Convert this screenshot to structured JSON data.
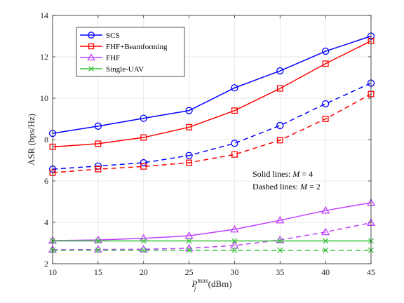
{
  "chart_data": {
    "type": "line",
    "x": [
      10,
      15,
      20,
      25,
      30,
      35,
      40,
      45
    ],
    "xlim": [
      10,
      45
    ],
    "ylim": [
      2,
      14
    ],
    "xticks": [
      "10",
      "15",
      "20",
      "25",
      "30",
      "35",
      "40",
      "45"
    ],
    "yticks": [
      "2",
      "4",
      "6",
      "8",
      "10",
      "12",
      "14"
    ],
    "xlabel": "P_j^max (dBm)",
    "xlabel_parts": {
      "base": "P",
      "sub": "j",
      "sup": "max",
      "unit": " (dBm)"
    },
    "ylabel": "ASR (bps/Hz)",
    "grid": true,
    "legend_position": "top-left",
    "legend": [
      {
        "name": "SCS",
        "color": "#0000ff",
        "marker": "circle"
      },
      {
        "name": "FHF+Beamforming",
        "color": "#ff0000",
        "marker": "square"
      },
      {
        "name": "FHF",
        "color": "#bf40ff",
        "marker": "triangle"
      },
      {
        "name": "Single-UAV",
        "color": "#3cc13c",
        "marker": "x"
      }
    ],
    "series": [
      {
        "legend_index": 0,
        "M": 4,
        "dash": "solid",
        "color": "#0000ff",
        "marker": "circle",
        "values": [
          8.3,
          8.65,
          9.03,
          9.4,
          10.5,
          11.32,
          12.27,
          13.0
        ]
      },
      {
        "legend_index": 0,
        "M": 2,
        "dash": "dashed",
        "color": "#0000ff",
        "marker": "circle",
        "values": [
          6.57,
          6.72,
          6.88,
          7.23,
          7.82,
          8.68,
          9.73,
          10.73
        ]
      },
      {
        "legend_index": 1,
        "M": 4,
        "dash": "solid",
        "color": "#ff0000",
        "marker": "square",
        "values": [
          7.65,
          7.8,
          8.1,
          8.6,
          9.4,
          10.47,
          11.67,
          12.77
        ]
      },
      {
        "legend_index": 1,
        "M": 2,
        "dash": "dashed",
        "color": "#ff0000",
        "marker": "square",
        "values": [
          6.4,
          6.57,
          6.7,
          6.88,
          7.28,
          7.97,
          9.0,
          10.2
        ]
      },
      {
        "legend_index": 2,
        "M": 4,
        "dash": "solid",
        "color": "#bf40ff",
        "marker": "triangle",
        "values": [
          3.12,
          3.15,
          3.23,
          3.35,
          3.66,
          4.1,
          4.57,
          4.95
        ]
      },
      {
        "legend_index": 2,
        "M": 2,
        "dash": "dashed",
        "color": "#bf40ff",
        "marker": "triangle",
        "values": [
          2.68,
          2.69,
          2.7,
          2.75,
          2.88,
          3.15,
          3.53,
          3.98
        ]
      },
      {
        "legend_index": 3,
        "M": 4,
        "dash": "solid",
        "color": "#3cc13c",
        "marker": "x",
        "values": [
          3.1,
          3.1,
          3.1,
          3.1,
          3.1,
          3.1,
          3.1,
          3.1
        ]
      },
      {
        "legend_index": 3,
        "M": 2,
        "dash": "dashed",
        "color": "#3cc13c",
        "marker": "x",
        "values": [
          2.65,
          2.65,
          2.65,
          2.65,
          2.65,
          2.65,
          2.65,
          2.65
        ]
      }
    ],
    "annotations": {
      "solid_prefix": "Solid lines: ",
      "solid_math": "M",
      "solid_value": " = 4",
      "dashed_prefix": "Dashed lines: ",
      "dashed_math": "M",
      "dashed_value": " = 2"
    }
  }
}
